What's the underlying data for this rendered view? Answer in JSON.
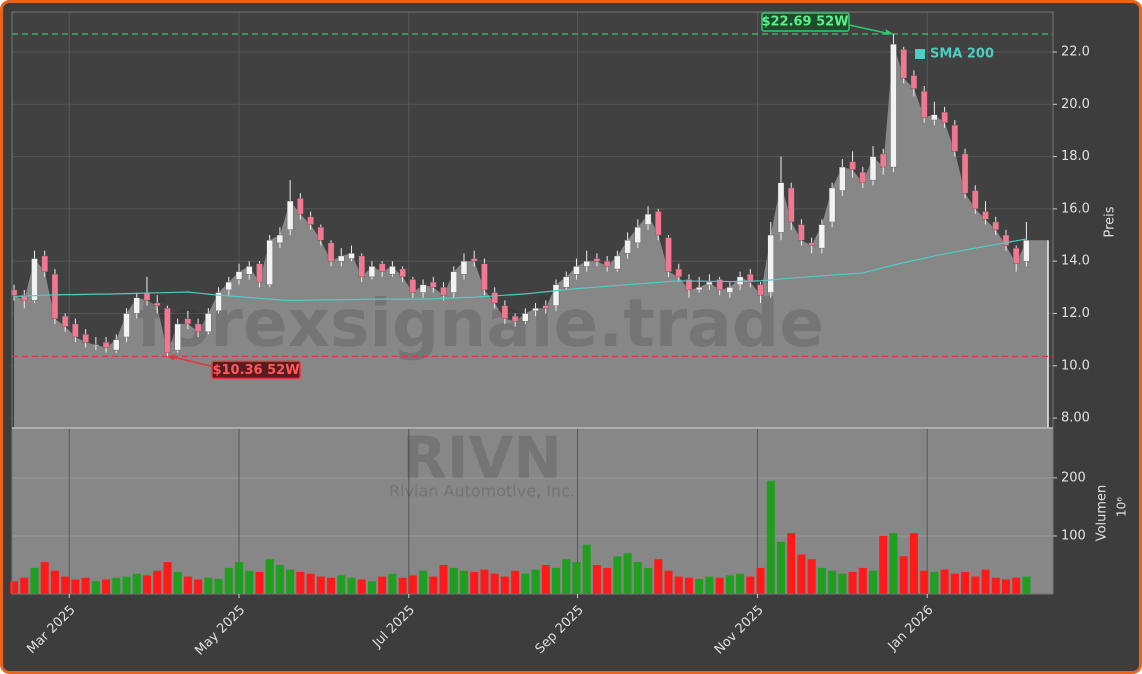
{
  "chart_data": {
    "type": "candlestick",
    "watermark": "forexsignale.trade",
    "ticker": "RIVN",
    "company": "Rivian Automotive, Inc.",
    "ylabel": "Preis",
    "y2label": "Volumen",
    "y2_scale": "10⁶",
    "open": [
      12.9,
      12.7,
      12.5,
      14.2,
      13.5,
      11.9,
      11.6,
      11.2,
      10.8,
      10.9,
      10.6,
      11.1,
      12.0,
      12.8,
      12.4,
      12.2,
      10.6,
      11.8,
      11.6,
      11.3,
      12.1,
      12.9,
      13.3,
      13.5,
      13.9,
      13.1,
      14.7,
      15.2,
      16.4,
      15.7,
      15.3,
      14.7,
      14.0,
      14.1,
      14.2,
      13.4,
      13.9,
      13.5,
      13.7,
      13.3,
      12.8,
      13.2,
      13.0,
      12.8,
      13.5,
      14.1,
      13.9,
      12.8,
      12.3,
      11.9,
      11.7,
      12.1,
      12.3,
      12.3,
      13.0,
      13.5,
      13.8,
      14.1,
      14.0,
      13.7,
      14.3,
      14.7,
      15.4,
      15.9,
      14.9,
      13.7,
      13.3,
      12.9,
      13.1,
      13.3,
      12.8,
      13.1,
      13.5,
      13.1,
      12.8,
      15.1,
      16.8,
      15.4,
      14.7,
      14.5,
      15.5,
      16.7,
      17.8,
      17.4,
      17.1,
      18.1,
      17.6,
      22.1,
      21.1,
      20.5,
      19.4,
      19.7,
      19.2,
      18.1,
      16.7,
      15.9,
      15.5,
      15.0,
      14.5,
      14.0
    ],
    "high": [
      13.1,
      12.9,
      14.4,
      14.4,
      13.7,
      12.0,
      11.8,
      11.4,
      11.1,
      11.1,
      11.2,
      12.2,
      12.8,
      13.4,
      12.7,
      12.3,
      11.8,
      12.1,
      11.8,
      12.2,
      13.0,
      13.4,
      13.9,
      14.0,
      14.0,
      15.0,
      15.3,
      17.1,
      16.6,
      15.9,
      15.4,
      14.8,
      14.5,
      14.6,
      14.3,
      14.0,
      14.0,
      14.0,
      13.8,
      13.4,
      13.3,
      13.4,
      13.2,
      13.8,
      14.3,
      14.4,
      14.1,
      13.0,
      12.5,
      12.0,
      12.2,
      12.4,
      12.5,
      13.3,
      13.6,
      14.1,
      14.4,
      14.3,
      14.2,
      14.4,
      15.1,
      15.6,
      16.1,
      16.0,
      15.0,
      13.9,
      13.5,
      13.4,
      13.5,
      13.4,
      13.2,
      13.6,
      13.7,
      13.2,
      15.5,
      18.0,
      17.0,
      15.6,
      14.9,
      15.6,
      17.0,
      17.9,
      18.2,
      17.6,
      18.4,
      18.3,
      22.69,
      22.2,
      21.3,
      20.7,
      20.1,
      19.9,
      19.4,
      18.3,
      16.9,
      16.3,
      15.7,
      15.2,
      14.6,
      15.5
    ],
    "low": [
      12.5,
      12.2,
      12.4,
      13.4,
      11.6,
      11.3,
      10.9,
      10.7,
      10.6,
      10.5,
      10.5,
      10.9,
      11.8,
      12.3,
      12.0,
      10.36,
      10.5,
      11.4,
      11.1,
      11.2,
      12.0,
      12.7,
      13.1,
      13.3,
      13.0,
      13.0,
      14.5,
      15.0,
      15.6,
      15.2,
      14.6,
      13.8,
      13.8,
      14.0,
      13.2,
      13.3,
      13.4,
      13.4,
      13.2,
      12.6,
      12.6,
      12.8,
      12.5,
      12.6,
      13.3,
      13.8,
      12.7,
      12.2,
      11.6,
      11.5,
      11.6,
      11.9,
      12.0,
      12.1,
      12.9,
      13.3,
      13.6,
      13.8,
      13.6,
      13.6,
      14.1,
      14.5,
      15.2,
      14.8,
      13.4,
      13.2,
      12.6,
      12.8,
      12.9,
      12.7,
      12.6,
      12.9,
      13.0,
      12.4,
      12.6,
      14.8,
      15.2,
      14.6,
      14.3,
      14.3,
      15.3,
      16.5,
      17.2,
      16.8,
      16.9,
      17.3,
      17.4,
      20.8,
      20.3,
      19.3,
      19.2,
      19.1,
      18.0,
      16.4,
      15.8,
      15.4,
      15.0,
      14.4,
      13.6,
      13.8
    ],
    "close": [
      12.7,
      12.5,
      14.1,
      13.6,
      11.8,
      11.5,
      11.1,
      10.9,
      10.8,
      10.7,
      11.0,
      12.0,
      12.6,
      12.5,
      12.3,
      10.5,
      11.6,
      11.6,
      11.3,
      12.0,
      12.8,
      13.2,
      13.6,
      13.8,
      13.2,
      14.8,
      15.0,
      16.3,
      15.8,
      15.4,
      14.8,
      14.0,
      14.2,
      14.3,
      13.4,
      13.8,
      13.6,
      13.8,
      13.4,
      12.8,
      13.1,
      13.0,
      12.7,
      13.6,
      14.0,
      14.0,
      12.9,
      12.4,
      11.8,
      11.7,
      12.0,
      12.2,
      12.2,
      13.1,
      13.4,
      13.8,
      14.0,
      14.0,
      13.8,
      14.2,
      14.8,
      15.3,
      15.8,
      15.0,
      13.6,
      13.4,
      12.9,
      13.0,
      13.2,
      12.9,
      13.0,
      13.4,
      13.2,
      12.7,
      15.0,
      17.0,
      15.5,
      14.8,
      14.6,
      15.4,
      16.8,
      17.6,
      17.5,
      17.0,
      18.0,
      17.6,
      22.3,
      21.0,
      20.6,
      19.5,
      19.6,
      19.3,
      18.2,
      16.6,
      16.0,
      15.6,
      15.2,
      14.6,
      13.9,
      14.8
    ],
    "volume": [
      22,
      28,
      45,
      55,
      40,
      30,
      25,
      28,
      22,
      25,
      28,
      30,
      35,
      32,
      40,
      55,
      38,
      30,
      25,
      28,
      26,
      45,
      55,
      40,
      38,
      60,
      50,
      42,
      38,
      35,
      30,
      28,
      32,
      28,
      25,
      22,
      30,
      35,
      28,
      32,
      40,
      30,
      50,
      45,
      40,
      38,
      42,
      35,
      30,
      40,
      35,
      42,
      50,
      45,
      60,
      55,
      85,
      50,
      45,
      65,
      70,
      55,
      45,
      60,
      40,
      30,
      28,
      26,
      30,
      28,
      32,
      35,
      30,
      45,
      195,
      90,
      105,
      68,
      60,
      45,
      40,
      35,
      38,
      45,
      40,
      100,
      105,
      65,
      105,
      40,
      38,
      42,
      35,
      38,
      30,
      42,
      28,
      25,
      28,
      30
    ],
    "sma": {
      "name": "SMA 200",
      "color": "#4ecdc4",
      "values": [
        12.65,
        12.67,
        12.68,
        12.7,
        12.71,
        12.72,
        12.72,
        12.73,
        12.74,
        12.74,
        12.75,
        12.76,
        12.77,
        12.78,
        12.79,
        12.8,
        12.81,
        12.82,
        12.78,
        12.74,
        12.7,
        12.67,
        12.64,
        12.61,
        12.58,
        12.55,
        12.52,
        12.5,
        12.5,
        12.51,
        12.52,
        12.52,
        12.53,
        12.53,
        12.54,
        12.55,
        12.55,
        12.55,
        12.55,
        12.55,
        12.55,
        12.56,
        12.58,
        12.59,
        12.61,
        12.62,
        12.65,
        12.67,
        12.7,
        12.72,
        12.75,
        12.79,
        12.83,
        12.87,
        12.91,
        12.95,
        12.98,
        13.01,
        13.04,
        13.07,
        13.1,
        13.13,
        13.16,
        13.19,
        13.22,
        13.25,
        13.24,
        13.24,
        13.23,
        13.23,
        13.22,
        13.23,
        13.24,
        13.25,
        13.28,
        13.32,
        13.35,
        13.38,
        13.41,
        13.44,
        13.47,
        13.5,
        13.52,
        13.55,
        13.65,
        13.75,
        13.85,
        13.94,
        14.03,
        14.11,
        14.2,
        14.28,
        14.35,
        14.43,
        14.5,
        14.57,
        14.64,
        14.71,
        14.78,
        14.85
      ]
    },
    "hlines": [
      {
        "value": 22.69,
        "label": "$22.69 52W",
        "color": "#2ecc71"
      },
      {
        "value": 10.36,
        "label": "$10.36 52W",
        "color": "#e8333a"
      }
    ],
    "candle_up_color": "#f2f2f2",
    "candle_down_color": "#f27890",
    "volume_up_color": "#1f9e1f",
    "volume_down_color": "#ff1a1a",
    "xlim": [
      -0.2,
      101.6
    ],
    "xticks": [
      {
        "value": 5.4,
        "label": "Mar 2025"
      },
      {
        "value": 22.0,
        "label": "May 2025"
      },
      {
        "value": 38.6,
        "label": "Jul 2025"
      },
      {
        "value": 55.1,
        "label": "Sep 2025"
      },
      {
        "value": 72.7,
        "label": "Nov 2025"
      },
      {
        "value": 89.3,
        "label": "Jan 2026"
      }
    ],
    "ylim": [
      7.62,
      23.53
    ],
    "yticks": [
      {
        "value": 8,
        "label": "8.00"
      },
      {
        "value": 10,
        "label": "10.0"
      },
      {
        "value": 12,
        "label": "12.0"
      },
      {
        "value": 14,
        "label": "14.0"
      },
      {
        "value": 16,
        "label": "16.0"
      },
      {
        "value": 18,
        "label": "18.0"
      },
      {
        "value": 20,
        "label": "20.0"
      },
      {
        "value": 22,
        "label": "22.0"
      }
    ],
    "y2lim": [
      0,
      286
    ],
    "y2ticks": [
      100,
      200
    ],
    "grid": true
  }
}
